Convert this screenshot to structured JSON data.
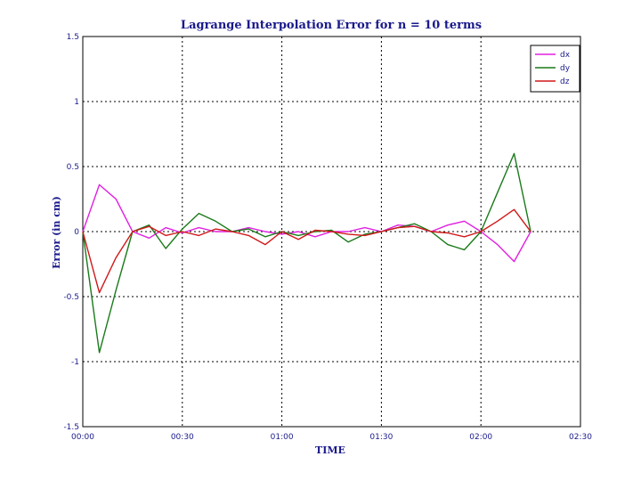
{
  "chart_data": {
    "type": "line",
    "title": "Lagrange Interpolation Error for n = 10 terms",
    "xlabel": "TIME",
    "ylabel": "Error (in cm)",
    "xlim": [
      0,
      150
    ],
    "ylim": [
      -1.5,
      1.5
    ],
    "xticks": [
      0,
      30,
      60,
      90,
      120,
      150
    ],
    "xtick_labels": [
      "00:00",
      "00:30",
      "01:00",
      "01:30",
      "02:00",
      "02:30"
    ],
    "yticks": [
      1.5,
      1,
      0.5,
      0,
      -0.5,
      -1,
      -1.5
    ],
    "ytick_labels": [
      "1.5",
      "1",
      "0.5",
      "0",
      "-0.5",
      "-1",
      "-1.5"
    ],
    "grid": true,
    "legend_position": "top-right",
    "x": [
      0,
      5,
      10,
      15,
      20,
      25,
      30,
      35,
      40,
      45,
      50,
      55,
      60,
      65,
      70,
      75,
      80,
      85,
      90,
      95,
      100,
      105,
      110,
      115,
      120,
      125,
      130,
      135
    ],
    "series": [
      {
        "name": "dx",
        "color": "#e020e0",
        "values": [
          0,
          0.36,
          0.25,
          0,
          -0.05,
          0.03,
          -0.01,
          0.03,
          0,
          0,
          0.03,
          0,
          -0.02,
          0,
          -0.04,
          0,
          0,
          0.03,
          0,
          0.05,
          0.04,
          0,
          0.05,
          0.08,
          0,
          -0.1,
          -0.23,
          0
        ]
      },
      {
        "name": "dy",
        "color": "#1a7a1a",
        "values": [
          0,
          -0.93,
          -0.45,
          0,
          0.05,
          -0.13,
          0.02,
          0.14,
          0.08,
          0,
          0.02,
          -0.04,
          0,
          -0.03,
          0,
          0.01,
          -0.08,
          -0.02,
          0,
          0.03,
          0.06,
          0,
          -0.1,
          -0.14,
          0,
          0.3,
          0.6,
          0
        ]
      },
      {
        "name": "dz",
        "color": "#d01818",
        "values": [
          0,
          -0.47,
          -0.2,
          0,
          0.04,
          -0.03,
          0,
          -0.03,
          0.02,
          0,
          -0.03,
          -0.1,
          0,
          -0.06,
          0.01,
          0,
          -0.02,
          -0.03,
          0,
          0.03,
          0.04,
          0,
          -0.01,
          -0.04,
          0,
          0.08,
          0.17,
          0
        ]
      }
    ]
  }
}
